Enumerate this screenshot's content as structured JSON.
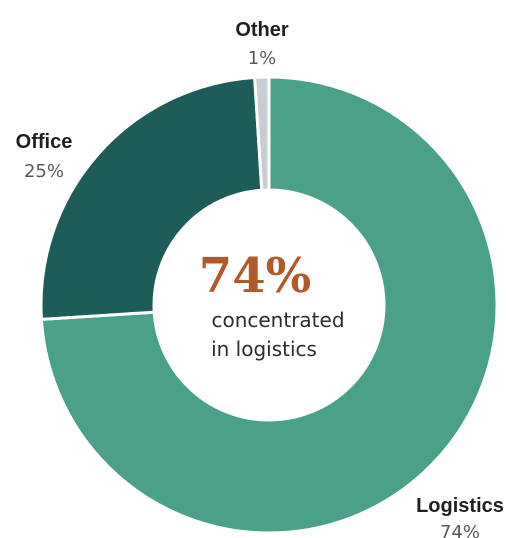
{
  "chart_data": {
    "type": "pie",
    "categories": [
      "Logistics",
      "Office",
      "Other"
    ],
    "values": [
      74,
      25,
      1
    ],
    "value_labels": [
      "74%",
      "25%",
      "1%"
    ],
    "colors": [
      "#4aa088",
      "#1e5c59",
      "#c8cdd3"
    ],
    "center": {
      "headline": "74%",
      "line1": "concentrated",
      "line2": "in logistics"
    }
  }
}
